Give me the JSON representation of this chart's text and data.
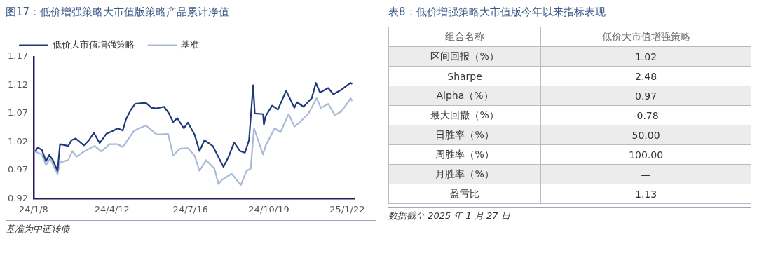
{
  "chart_data": [
    {
      "type": "line",
      "title": "图17：低价增强策略大市值版策略产品累计净值",
      "x": [
        "2024-01-10",
        "2024-01-13",
        "2024-01-18",
        "2024-01-23",
        "2024-01-27",
        "2024-01-31",
        "2024-02-06",
        "2024-02-09",
        "2024-02-19",
        "2024-02-23",
        "2024-02-28",
        "2024-03-09",
        "2024-03-15",
        "2024-03-21",
        "2024-03-28",
        "2024-04-05",
        "2024-04-14",
        "2024-04-19",
        "2024-04-25",
        "2024-04-29",
        "2024-05-05",
        "2024-05-10",
        "2024-05-23",
        "2024-05-30",
        "2024-06-05",
        "2024-06-14",
        "2024-06-20",
        "2024-06-25",
        "2024-06-30",
        "2024-07-08",
        "2024-07-13",
        "2024-07-21",
        "2024-07-27",
        "2024-08-02",
        "2024-08-12",
        "2024-08-19",
        "2024-08-25",
        "2024-08-31",
        "2024-09-07",
        "2024-09-14",
        "2024-09-20",
        "2024-09-25",
        "2024-09-30",
        "2024-10-02",
        "2024-10-12",
        "2024-10-13",
        "2024-10-15",
        "2024-10-23",
        "2024-10-30",
        "2024-11-09",
        "2024-11-19",
        "2024-11-22",
        "2024-11-30",
        "2024-12-10",
        "2024-12-15",
        "2024-12-20",
        "2024-12-30",
        "2025-01-05",
        "2025-01-15",
        "2025-01-26",
        "2025-01-28"
      ],
      "series": [
        {
          "name": "低价大市值增强策略",
          "color": "#1f3a7a",
          "values": [
            1.003,
            1.01,
            1.006,
            0.986,
            0.997,
            0.989,
            0.969,
            1.016,
            1.013,
            1.023,
            1.026,
            1.014,
            1.023,
            1.036,
            1.018,
            1.034,
            1.04,
            1.044,
            1.04,
            1.06,
            1.077,
            1.087,
            1.089,
            1.08,
            1.079,
            1.082,
            1.07,
            1.055,
            1.062,
            1.044,
            1.054,
            1.033,
            1.004,
            1.023,
            1.013,
            0.993,
            0.976,
            0.993,
            1.019,
            1.004,
            1.001,
            1.023,
            1.12,
            1.07,
            1.069,
            1.05,
            1.065,
            1.084,
            1.077,
            1.11,
            1.08,
            1.09,
            1.082,
            1.097,
            1.124,
            1.107,
            1.115,
            1.104,
            1.112,
            1.124,
            1.122
          ]
        },
        {
          "name": "基准",
          "color": "#a9b9d6",
          "x": [
            "2024-01-10",
            "2024-01-18",
            "2024-01-23",
            "2024-01-28",
            "2024-02-06",
            "2024-02-09",
            "2024-02-19",
            "2024-02-24",
            "2024-02-29",
            "2024-03-10",
            "2024-03-22",
            "2024-03-30",
            "2024-04-09",
            "2024-04-19",
            "2024-04-25",
            "2024-05-09",
            "2024-05-23",
            "2024-06-05",
            "2024-06-19",
            "2024-06-25",
            "2024-07-03",
            "2024-07-13",
            "2024-07-21",
            "2024-07-27",
            "2024-08-04",
            "2024-08-14",
            "2024-08-19",
            "2024-08-23",
            "2024-09-04",
            "2024-09-15",
            "2024-09-22",
            "2024-09-27",
            "2024-10-01",
            "2024-10-12",
            "2024-10-15",
            "2024-10-26",
            "2024-11-02",
            "2024-11-12",
            "2024-11-19",
            "2024-11-25",
            "2024-12-06",
            "2024-12-16",
            "2024-12-21",
            "2024-12-30",
            "2025-01-07",
            "2025-01-15",
            "2025-01-23",
            "2025-01-26",
            "2025-01-28"
          ],
          "values": [
            1.003,
            0.998,
            0.979,
            0.991,
            0.963,
            0.984,
            0.988,
            1.004,
            0.994,
            1.004,
            1.013,
            1.003,
            1.016,
            1.016,
            1.011,
            1.04,
            1.049,
            1.033,
            1.034,
            0.996,
            1.008,
            1.009,
            0.996,
            0.969,
            0.988,
            0.973,
            0.946,
            0.953,
            0.964,
            0.944,
            0.969,
            0.973,
            1.044,
            0.998,
            1.013,
            1.044,
            1.037,
            1.069,
            1.047,
            1.054,
            1.07,
            1.097,
            1.08,
            1.087,
            1.067,
            1.074,
            1.09,
            1.097,
            1.092
          ]
        }
      ],
      "xlim": [
        "2024-01-08",
        "2025-01-31"
      ],
      "xticks": [
        {
          "value": "2024-01-08",
          "label": "24/1/8"
        },
        {
          "value": "2024-04-12",
          "label": "24/4/12"
        },
        {
          "value": "2024-07-16",
          "label": "24/7/16"
        },
        {
          "value": "2024-10-19",
          "label": "24/10/19"
        },
        {
          "value": "2025-01-22",
          "label": "25/1/22"
        }
      ],
      "ylim": [
        0.92,
        1.17
      ],
      "yticks": [
        0.92,
        0.97,
        1.02,
        1.07,
        1.12,
        1.17
      ],
      "legend": "top",
      "grid": false,
      "marker": "none",
      "line_style": "solid",
      "annotations": [
        "基准为中证转债"
      ]
    },
    {
      "type": "other",
      "title": "表8：低价增强策略大市值版今年以来指标表现",
      "xlabel": "组合名称",
      "categories": [
        "区间回报（%）",
        "Sharpe",
        "Alpha（%）",
        "最大回撤（%）",
        "日胜率（%）",
        "周胜率（%）",
        "月胜率（%）",
        "盈亏比"
      ],
      "series": [
        {
          "name": "低价大市值增强策略",
          "values": [
            1.02,
            2.48,
            0.97,
            -0.78,
            50.0,
            100.0,
            null,
            1.13
          ],
          "value_labels": [
            "1.02",
            "2.48",
            "0.97",
            "-0.78",
            "50.00",
            "100.00",
            "—",
            "1.13"
          ]
        }
      ],
      "annotations": [
        "数据截至 2025 年 1 月 27 日"
      ]
    }
  ]
}
